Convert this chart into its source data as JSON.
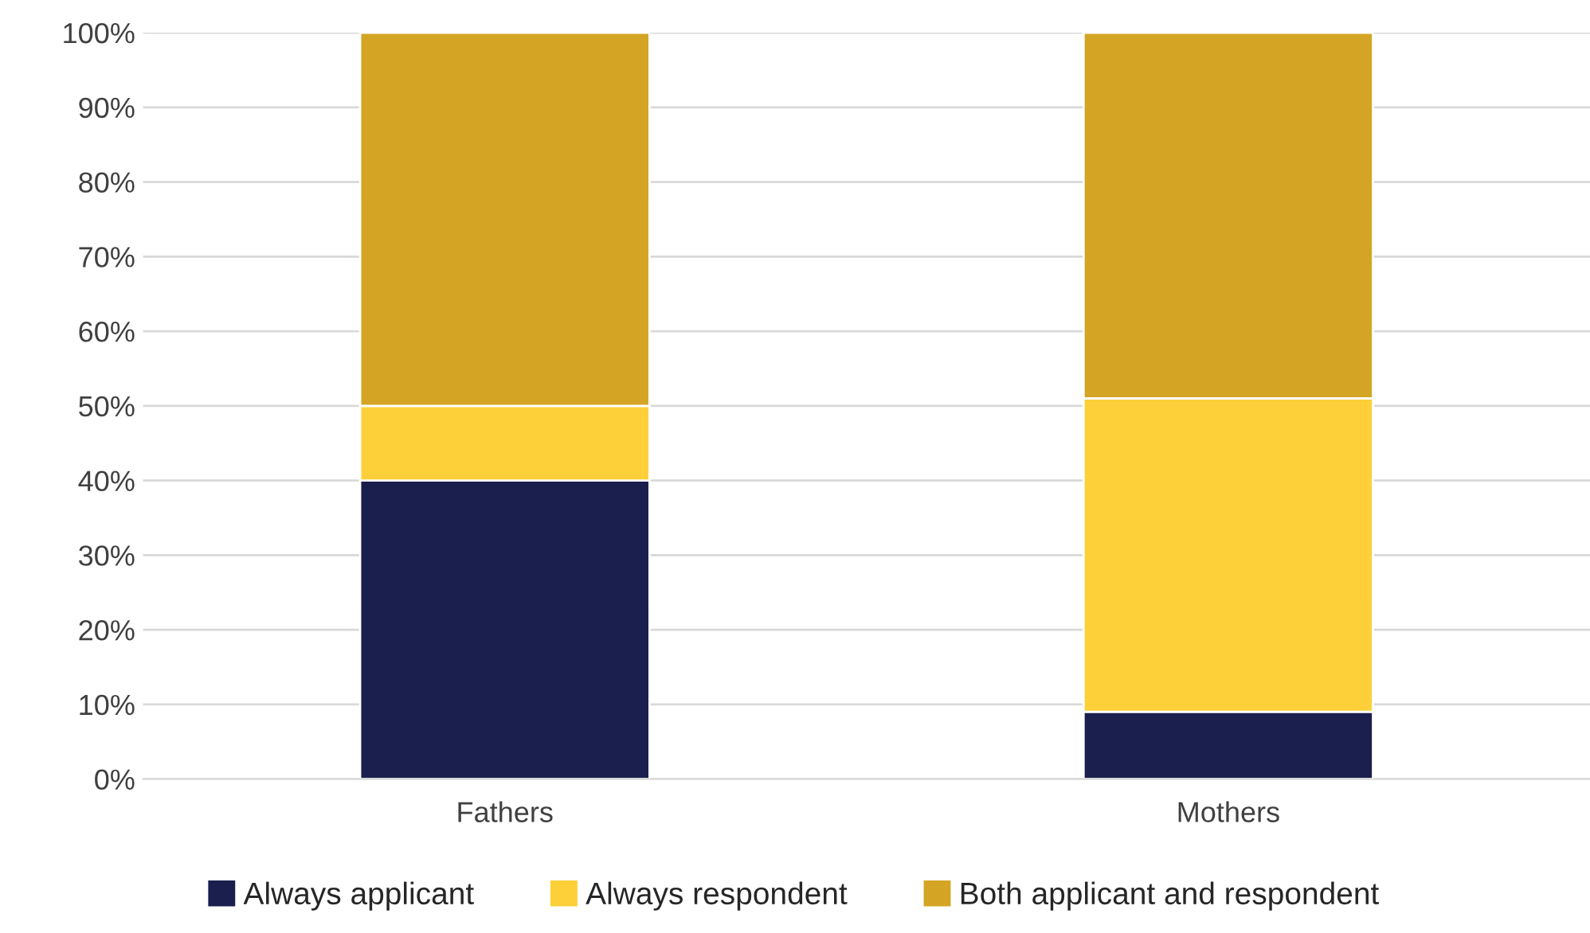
{
  "chart_data": {
    "type": "bar",
    "stacked": true,
    "categories": [
      "Fathers",
      "Mothers"
    ],
    "series": [
      {
        "name": "Always applicant",
        "color": "#1a1f4e",
        "values": [
          40,
          9
        ]
      },
      {
        "name": "Always respondent",
        "color": "#fdd03a",
        "values": [
          10,
          42
        ]
      },
      {
        "name": "Both applicant and respondent",
        "color": "#d4a524",
        "values": [
          50,
          49
        ]
      }
    ],
    "ylim": [
      0,
      100
    ],
    "yticks": [
      {
        "value": 0,
        "label": "0%"
      },
      {
        "value": 10,
        "label": "10%"
      },
      {
        "value": 20,
        "label": "20%"
      },
      {
        "value": 30,
        "label": "30%"
      },
      {
        "value": 40,
        "label": "40%"
      },
      {
        "value": 50,
        "label": "50%"
      },
      {
        "value": 60,
        "label": "60%"
      },
      {
        "value": 70,
        "label": "70%"
      },
      {
        "value": 80,
        "label": "80%"
      },
      {
        "value": 90,
        "label": "90%"
      },
      {
        "value": 100,
        "label": "100%"
      }
    ],
    "grid": "y",
    "legend": "bottom"
  }
}
